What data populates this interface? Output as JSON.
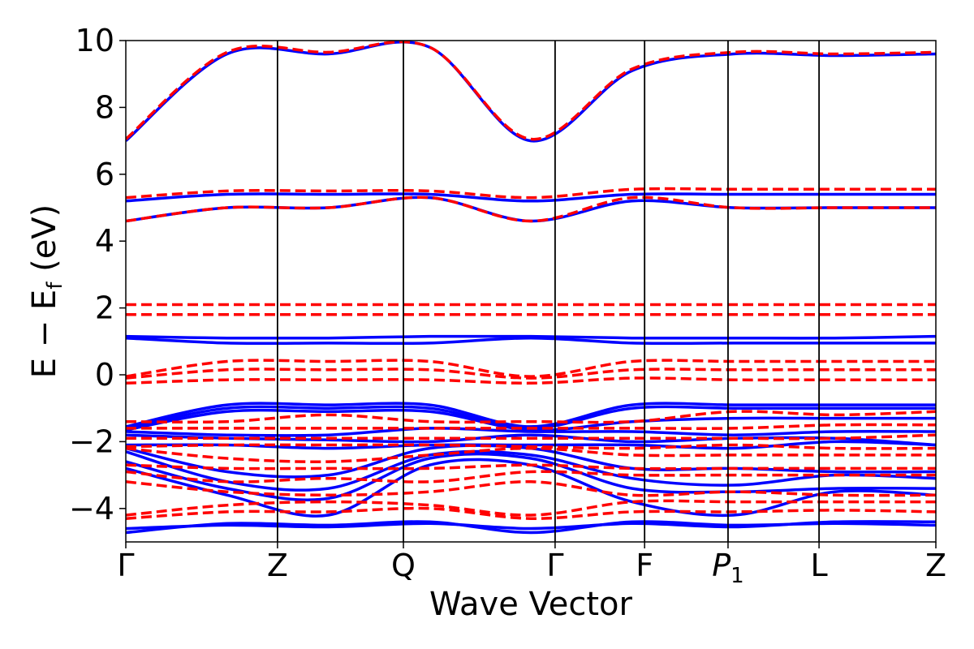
{
  "chart_data": {
    "type": "line",
    "xlabel": "Wave Vector",
    "ylabel_parts": {
      "main": "E − E",
      "sub": "f",
      "tail": " (eV)"
    },
    "ylim": [
      -5,
      10
    ],
    "yticks": [
      -4,
      -2,
      0,
      2,
      4,
      6,
      8,
      10
    ],
    "ytick_labels": [
      "−4",
      "−2",
      "0",
      "2",
      "4",
      "6",
      "8",
      "10"
    ],
    "kpoints": [
      {
        "label": "Γ",
        "pos": 0.0
      },
      {
        "label": "Z",
        "pos": 1.0
      },
      {
        "label": "Q",
        "pos": 1.83
      },
      {
        "label": "Γ",
        "pos": 2.83
      },
      {
        "label": "F",
        "pos": 3.42
      },
      {
        "label": "P",
        "sub": "1",
        "pos": 3.97
      },
      {
        "label": "L",
        "pos": 4.57
      },
      {
        "label": "Z",
        "pos": 5.34
      }
    ],
    "grid": false,
    "series": [
      {
        "color": "#0000ff",
        "style": "solid",
        "bands": [
          [
            -4.72,
            -4.45,
            -4.5,
            -4.4,
            -4.72,
            -4.4,
            -4.5,
            -4.45,
            -4.5
          ],
          [
            -4.6,
            -4.5,
            -4.55,
            -4.45,
            -4.6,
            -4.45,
            -4.55,
            -4.4,
            -4.4
          ],
          [
            -2.8,
            -3.6,
            -4.2,
            -2.7,
            -2.7,
            -3.8,
            -4.2,
            -3.5,
            -3.6
          ],
          [
            -2.6,
            -3.4,
            -3.7,
            -2.5,
            -2.5,
            -3.4,
            -3.5,
            -3.4,
            -3.4
          ],
          [
            -2.3,
            -3.2,
            -3.4,
            -2.4,
            -2.4,
            -3.1,
            -3.3,
            -3.0,
            -3.1
          ],
          [
            -2.2,
            -2.9,
            -3.0,
            -2.2,
            -2.2,
            -2.8,
            -2.8,
            -2.9,
            -2.9
          ],
          [
            -2.1,
            -2.1,
            -2.2,
            -2.1,
            -2.1,
            -2.1,
            -2.2,
            -2.0,
            -2.1
          ],
          [
            -1.8,
            -1.9,
            -1.95,
            -2.0,
            -1.8,
            -2.0,
            -1.9,
            -1.9,
            -2.1
          ],
          [
            -1.7,
            -1.8,
            -1.8,
            -1.6,
            -1.7,
            -1.7,
            -1.8,
            -1.7,
            -1.7
          ],
          [
            -1.65,
            -1.1,
            -1.1,
            -1.1,
            -1.65,
            -1.4,
            -1.3,
            -1.3,
            -1.3
          ],
          [
            -1.6,
            -1.0,
            -1.0,
            -1.0,
            -1.6,
            -1.0,
            -1.0,
            -1.0,
            -1.0
          ],
          [
            -1.55,
            -0.9,
            -0.9,
            -0.9,
            -1.55,
            -0.9,
            -0.9,
            -0.9,
            -0.9
          ],
          [
            1.15,
            1.1,
            1.1,
            1.15,
            1.15,
            1.1,
            1.1,
            1.1,
            1.15
          ],
          [
            1.1,
            0.95,
            0.95,
            0.95,
            1.1,
            0.95,
            0.95,
            0.95,
            0.95
          ],
          [
            4.6,
            5.0,
            5.0,
            5.3,
            4.6,
            5.2,
            5.0,
            5.0,
            5.0
          ],
          [
            5.2,
            5.4,
            5.4,
            5.4,
            5.2,
            5.4,
            5.4,
            5.4,
            5.4
          ],
          [
            7.0,
            9.6,
            9.6,
            9.8,
            7.0,
            9.1,
            9.6,
            9.55,
            9.6
          ]
        ]
      },
      {
        "color": "#ff0000",
        "style": "dashed",
        "bands": [
          [
            -4.3,
            -4.1,
            -4.1,
            -4.0,
            -4.3,
            -4.1,
            -4.1,
            -4.05,
            -4.1
          ],
          [
            -4.2,
            -3.9,
            -3.8,
            -3.9,
            -4.2,
            -3.8,
            -3.8,
            -3.8,
            -3.8
          ],
          [
            -3.2,
            -3.5,
            -3.6,
            -3.5,
            -3.2,
            -3.6,
            -3.5,
            -3.6,
            -3.6
          ],
          [
            -2.9,
            -3.2,
            -3.1,
            -3.2,
            -2.9,
            -3.0,
            -3.0,
            -3.0,
            -3.0
          ],
          [
            -2.7,
            -2.8,
            -2.8,
            -2.8,
            -2.7,
            -2.8,
            -2.8,
            -2.8,
            -2.8
          ],
          [
            -2.2,
            -2.5,
            -2.6,
            -2.4,
            -2.2,
            -2.4,
            -2.4,
            -2.4,
            -2.4
          ],
          [
            -2.15,
            -2.1,
            -2.1,
            -2.1,
            -2.15,
            -2.2,
            -2.1,
            -2.2,
            -2.2
          ],
          [
            -1.9,
            -1.9,
            -1.9,
            -1.9,
            -1.9,
            -1.9,
            -1.9,
            -1.9,
            -1.8
          ],
          [
            -1.6,
            -1.6,
            -1.6,
            -1.6,
            -1.6,
            -1.6,
            -1.6,
            -1.5,
            -1.5
          ],
          [
            -1.4,
            -1.4,
            -1.2,
            -1.4,
            -1.4,
            -1.4,
            -1.1,
            -1.2,
            -1.1
          ],
          [
            -0.25,
            -0.15,
            -0.15,
            -0.15,
            -0.25,
            -0.1,
            -0.15,
            -0.15,
            -0.15
          ],
          [
            -0.1,
            0.15,
            0.15,
            0.15,
            -0.1,
            0.15,
            0.15,
            0.15,
            0.15
          ],
          [
            -0.05,
            0.4,
            0.4,
            0.4,
            -0.05,
            0.4,
            0.4,
            0.4,
            0.4
          ],
          [
            1.8,
            1.8,
            1.8,
            1.8,
            1.8,
            1.8,
            1.8,
            1.8,
            1.8
          ],
          [
            2.1,
            2.1,
            2.1,
            2.1,
            2.1,
            2.1,
            2.1,
            2.1,
            2.1
          ],
          [
            4.6,
            5.0,
            5.0,
            5.3,
            4.6,
            5.3,
            5.0,
            5.0,
            5.0
          ],
          [
            5.3,
            5.5,
            5.5,
            5.5,
            5.3,
            5.55,
            5.55,
            5.55,
            5.55
          ],
          [
            7.05,
            9.65,
            9.65,
            9.8,
            7.05,
            9.15,
            9.65,
            9.6,
            9.65
          ]
        ]
      }
    ]
  }
}
